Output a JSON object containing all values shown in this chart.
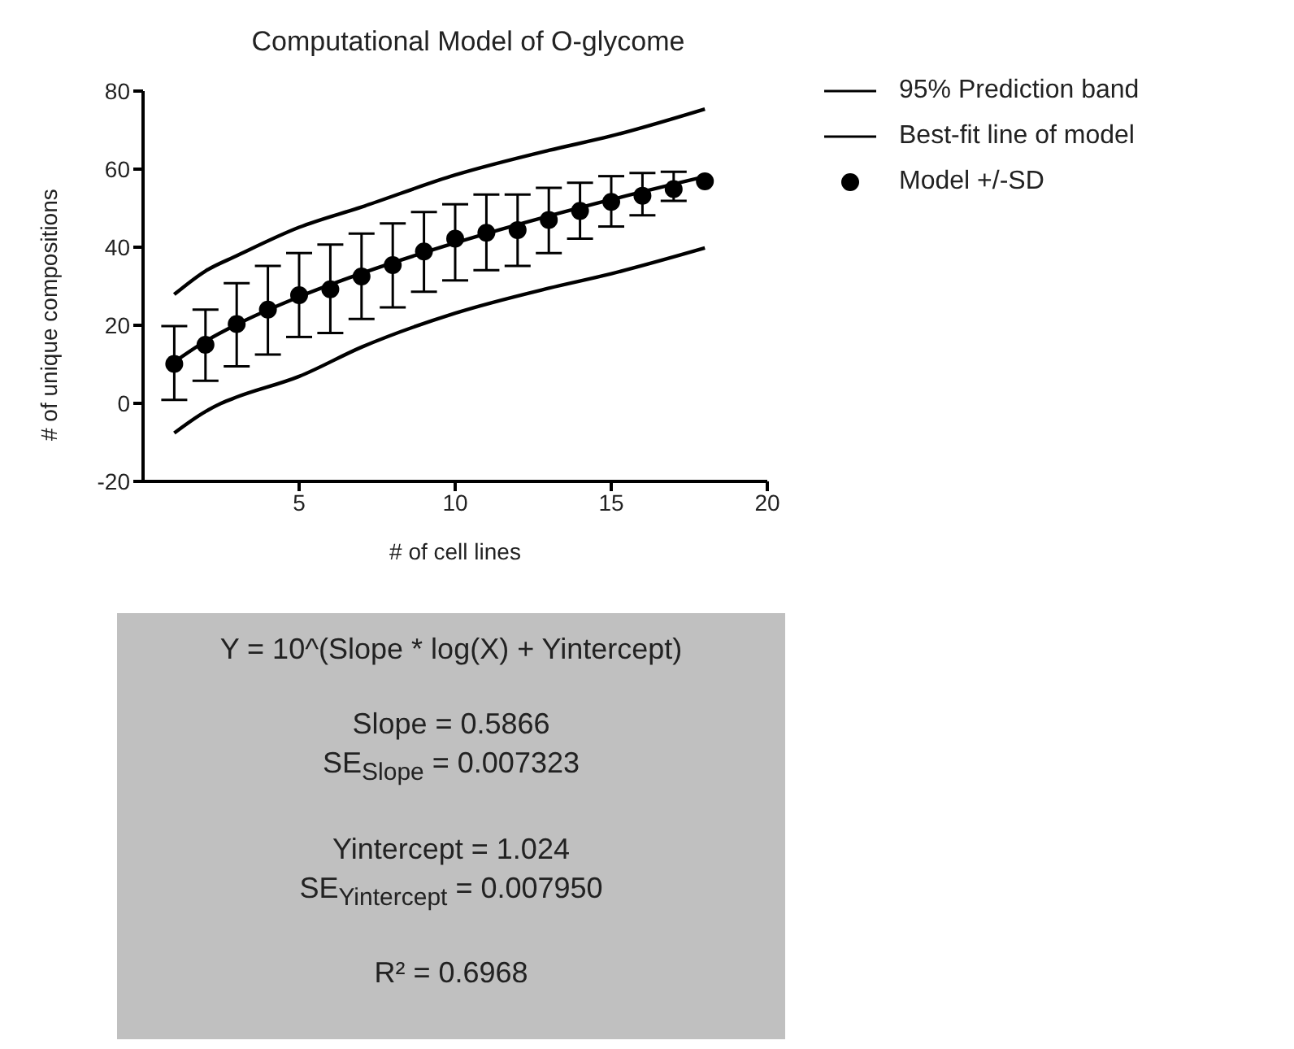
{
  "chart_data": {
    "type": "line",
    "title": "Computational Model of O-glycome",
    "xlabel": "# of cell lines",
    "ylabel": "# of unique compositions",
    "xlim": [
      0,
      20
    ],
    "xticks": [
      5,
      10,
      15,
      20
    ],
    "ylim": [
      -20,
      80
    ],
    "yticks": [
      -20,
      0,
      20,
      40,
      60,
      80
    ],
    "grid": false,
    "legend": "right",
    "series": [
      {
        "name": "95% Prediction band",
        "line_style": "solid",
        "marker": "none",
        "color": "#000000",
        "x": [
          1,
          2,
          3,
          5,
          7,
          10,
          13,
          15,
          18
        ],
        "values": [
          27.9,
          33.9,
          37.8,
          45.1,
          50.3,
          58.5,
          64.8,
          68.5,
          75.4
        ]
      },
      {
        "line_style": "solid",
        "marker": "none",
        "color": "#000000",
        "x": [
          1,
          2,
          2.5,
          3,
          5,
          7,
          10,
          13,
          15,
          18
        ],
        "values": [
          -7.6,
          -2.1,
          0,
          1.6,
          6.9,
          14.4,
          23.1,
          29.5,
          33.2,
          39.8
        ]
      },
      {
        "name": "Best-fit line of model",
        "line_style": "solid",
        "marker": "none",
        "color": "#000000",
        "x": [
          1,
          2,
          3,
          5,
          7,
          10,
          13,
          15,
          18
        ],
        "values": [
          10.6,
          15.9,
          20.2,
          27.3,
          33.3,
          41.1,
          48.0,
          52.2,
          58.1
        ]
      },
      {
        "name": "Model +/-SD",
        "type": "scatter",
        "marker": "circle",
        "color": "#000000",
        "x": [
          1,
          2,
          3,
          4,
          5,
          6,
          7,
          8,
          9,
          10,
          11,
          12,
          13,
          14,
          15,
          16,
          17,
          18
        ],
        "values": [
          10.1,
          15.0,
          20.3,
          24.0,
          27.7,
          29.2,
          32.5,
          35.4,
          38.9,
          42.2,
          43.7,
          44.4,
          47.0,
          49.3,
          51.6,
          53.2,
          54.9,
          56.9
        ],
        "errors": [
          [
            0.9,
            19.8
          ],
          [
            5.8,
            24.0
          ],
          [
            9.5,
            30.8
          ],
          [
            12.5,
            35.2
          ],
          [
            17.0,
            38.5
          ],
          [
            18.0,
            40.7
          ],
          [
            21.6,
            43.5
          ],
          [
            24.6,
            46.1
          ],
          [
            28.6,
            49.0
          ],
          [
            31.5,
            51.0
          ],
          [
            34.1,
            53.5
          ],
          [
            35.2,
            53.5
          ],
          [
            38.5,
            55.2
          ],
          [
            42.2,
            56.5
          ],
          [
            45.3,
            58.2
          ],
          [
            48.2,
            59.0
          ],
          [
            51.9,
            59.3
          ],
          null
        ]
      }
    ],
    "annotations": [
      "Y = 10^(Slope * log(X) + Yintercept)",
      "Slope = 0.5866",
      "SE$_{Slope}$ = 0.007323",
      "Yintercept = 1.024",
      "SE$_{Yintercept}$ = 0.007950",
      "R² = 0.6968"
    ]
  }
}
